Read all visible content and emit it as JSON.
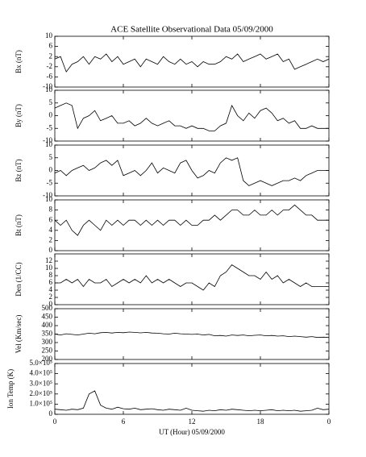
{
  "chart_data": [
    {
      "type": "line",
      "title": "ACE Satellite Observational Data   05/09/2000",
      "y_label": "Bx (nT)",
      "ylim": [
        -10,
        10
      ],
      "yticks": [
        -10,
        -6,
        -2,
        2,
        6,
        10
      ],
      "xlim": [
        0,
        24
      ],
      "color": "#000000",
      "x": [
        0,
        0.5,
        1,
        1.5,
        2,
        2.5,
        3,
        3.5,
        4,
        4.5,
        5,
        5.5,
        6,
        6.5,
        7,
        7.5,
        8,
        8.5,
        9,
        9.5,
        10,
        10.5,
        11,
        11.5,
        12,
        12.5,
        13,
        13.5,
        14,
        14.5,
        15,
        15.5,
        16,
        16.5,
        17,
        17.5,
        18,
        18.5,
        19,
        19.5,
        20,
        20.5,
        21,
        21.5,
        22,
        22.5,
        23,
        23.5,
        24
      ],
      "values": [
        1,
        2,
        -4,
        -1,
        0,
        2,
        -1,
        2,
        1,
        3,
        0,
        2,
        -1,
        0,
        1,
        -2,
        1,
        0,
        -1,
        2,
        0,
        -1,
        1,
        -1,
        0,
        -2,
        0,
        -1,
        -1,
        0,
        2,
        1,
        3,
        0,
        1,
        2,
        3,
        1,
        2,
        3,
        0,
        1,
        -3,
        -2,
        -1,
        0,
        1,
        0,
        1
      ]
    },
    {
      "type": "line",
      "y_label": "By (nT)",
      "ylim": [
        -10,
        10
      ],
      "yticks": [
        -10,
        -5,
        0,
        5,
        10
      ],
      "xlim": [
        0,
        24
      ],
      "color": "#000000",
      "x": [
        0,
        0.5,
        1,
        1.5,
        2,
        2.5,
        3,
        3.5,
        4,
        4.5,
        5,
        5.5,
        6,
        6.5,
        7,
        7.5,
        8,
        8.5,
        9,
        9.5,
        10,
        10.5,
        11,
        11.5,
        12,
        12.5,
        13,
        13.5,
        14,
        14.5,
        15,
        15.5,
        16,
        16.5,
        17,
        17.5,
        18,
        18.5,
        19,
        19.5,
        20,
        20.5,
        21,
        21.5,
        22,
        22.5,
        23,
        23.5,
        24
      ],
      "values": [
        3,
        4,
        5,
        4,
        -5,
        -1,
        0,
        2,
        -2,
        -1,
        0,
        -3,
        -3,
        -2,
        -4,
        -3,
        -1,
        -3,
        -4,
        -3,
        -2,
        -4,
        -4,
        -5,
        -4,
        -5,
        -5,
        -6,
        -6,
        -4,
        -3,
        4,
        0,
        -2,
        1,
        -1,
        2,
        3,
        1,
        -2,
        -1,
        -3,
        -2,
        -5,
        -5,
        -4,
        -5,
        -5,
        -5
      ]
    },
    {
      "type": "line",
      "y_label": "Bz (nT)",
      "ylim": [
        -10,
        10
      ],
      "yticks": [
        -10,
        -5,
        0,
        5,
        10
      ],
      "xlim": [
        0,
        24
      ],
      "color": "#000000",
      "x": [
        0,
        0.5,
        1,
        1.5,
        2,
        2.5,
        3,
        3.5,
        4,
        4.5,
        5,
        5.5,
        6,
        6.5,
        7,
        7.5,
        8,
        8.5,
        9,
        9.5,
        10,
        10.5,
        11,
        11.5,
        12,
        12.5,
        13,
        13.5,
        14,
        14.5,
        15,
        15.5,
        16,
        16.5,
        17,
        17.5,
        18,
        18.5,
        19,
        19.5,
        20,
        20.5,
        21,
        21.5,
        22,
        22.5,
        23,
        23.5,
        24
      ],
      "values": [
        -1,
        0,
        -2,
        0,
        1,
        2,
        0,
        1,
        3,
        4,
        2,
        4,
        -2,
        -1,
        0,
        -2,
        0,
        3,
        -1,
        1,
        0,
        -1,
        3,
        4,
        0,
        -3,
        -2,
        0,
        -1,
        3,
        5,
        4,
        5,
        -4,
        -6,
        -5,
        -4,
        -5,
        -6,
        -5,
        -4,
        -4,
        -3,
        -4,
        -2,
        -1,
        0,
        0,
        0
      ]
    },
    {
      "type": "line",
      "y_label": "Bt (nT)",
      "ylim": [
        0,
        10
      ],
      "yticks": [
        0,
        2,
        4,
        6,
        8,
        10
      ],
      "xlim": [
        0,
        24
      ],
      "color": "#000000",
      "x": [
        0,
        0.5,
        1,
        1.5,
        2,
        2.5,
        3,
        3.5,
        4,
        4.5,
        5,
        5.5,
        6,
        6.5,
        7,
        7.5,
        8,
        8.5,
        9,
        9.5,
        10,
        10.5,
        11,
        11.5,
        12,
        12.5,
        13,
        13.5,
        14,
        14.5,
        15,
        15.5,
        16,
        16.5,
        17,
        17.5,
        18,
        18.5,
        19,
        19.5,
        20,
        20.5,
        21,
        21.5,
        22,
        22.5,
        23,
        23.5,
        24
      ],
      "values": [
        6,
        5,
        6,
        4,
        3,
        5,
        6,
        5,
        4,
        6,
        5,
        6,
        5,
        6,
        6,
        5,
        6,
        5,
        6,
        5,
        6,
        6,
        5,
        6,
        5,
        5,
        6,
        6,
        7,
        6,
        7,
        8,
        8,
        7,
        7,
        8,
        7,
        7,
        8,
        7,
        8,
        8,
        9,
        8,
        7,
        7,
        6,
        6,
        6
      ]
    },
    {
      "type": "line",
      "y_label": "Den (1/CC)",
      "ylim": [
        0,
        14
      ],
      "yticks": [
        0,
        2,
        4,
        6,
        8,
        10,
        12
      ],
      "xlim": [
        0,
        24
      ],
      "color": "#000000",
      "x": [
        0,
        0.5,
        1,
        1.5,
        2,
        2.5,
        3,
        3.5,
        4,
        4.5,
        5,
        5.5,
        6,
        6.5,
        7,
        7.5,
        8,
        8.5,
        9,
        9.5,
        10,
        10.5,
        11,
        11.5,
        12,
        12.5,
        13,
        13.5,
        14,
        14.5,
        15,
        15.5,
        16,
        16.5,
        17,
        17.5,
        18,
        18.5,
        19,
        19.5,
        20,
        20.5,
        21,
        21.5,
        22,
        22.5,
        23,
        23.5,
        24
      ],
      "values": [
        6,
        6,
        7,
        6,
        7,
        5,
        7,
        6,
        6,
        7,
        5,
        6,
        7,
        6,
        7,
        6,
        8,
        6,
        7,
        6,
        7,
        6,
        5,
        6,
        6,
        5,
        4,
        6,
        5,
        8,
        9,
        11,
        10,
        9,
        8,
        8,
        7,
        9,
        7,
        8,
        6,
        7,
        6,
        5,
        6,
        5,
        5,
        5,
        5
      ]
    },
    {
      "type": "line",
      "y_label": "Vel (Km/sec)",
      "ylim": [
        200,
        500
      ],
      "yticks": [
        200,
        250,
        300,
        350,
        400,
        450,
        500
      ],
      "xlim": [
        0,
        24
      ],
      "color": "#000000",
      "x": [
        0,
        0.5,
        1,
        1.5,
        2,
        2.5,
        3,
        3.5,
        4,
        4.5,
        5,
        5.5,
        6,
        6.5,
        7,
        7.5,
        8,
        8.5,
        9,
        9.5,
        10,
        10.5,
        11,
        11.5,
        12,
        12.5,
        13,
        13.5,
        14,
        14.5,
        15,
        15.5,
        16,
        16.5,
        17,
        17.5,
        18,
        18.5,
        19,
        19.5,
        20,
        20.5,
        21,
        21.5,
        22,
        22.5,
        23,
        23.5,
        24
      ],
      "values": [
        350,
        345,
        352,
        348,
        345,
        350,
        355,
        352,
        358,
        360,
        356,
        360,
        358,
        362,
        360,
        357,
        360,
        356,
        355,
        352,
        350,
        355,
        352,
        350,
        348,
        350,
        345,
        348,
        340,
        342,
        338,
        345,
        342,
        345,
        340,
        343,
        345,
        340,
        342,
        338,
        340,
        335,
        338,
        335,
        332,
        335,
        330,
        332,
        330
      ]
    },
    {
      "type": "line",
      "y_label": "Ion Temp (K)",
      "x_label": "UT (Hour)   05/09/2000",
      "ylim": [
        0,
        500000
      ],
      "yticks": [
        0,
        {
          "value": 100000,
          "label": "1.0×10⁵"
        },
        {
          "value": 200000,
          "label": "2.0×10⁵"
        },
        {
          "value": 300000,
          "label": "3.0×10⁵"
        },
        {
          "value": 400000,
          "label": "4.0×10⁵"
        },
        {
          "value": 500000,
          "label": "5.0×10⁵"
        }
      ],
      "xlim": [
        0,
        24
      ],
      "xticks": [
        0,
        6,
        12,
        18,
        {
          "value": 24,
          "label": "0"
        }
      ],
      "color": "#000000",
      "x": [
        0,
        0.5,
        1,
        1.5,
        2,
        2.5,
        3,
        3.5,
        4,
        4.5,
        5,
        5.5,
        6,
        6.5,
        7,
        7.5,
        8,
        8.5,
        9,
        9.5,
        10,
        10.5,
        11,
        11.5,
        12,
        12.5,
        13,
        13.5,
        14,
        14.5,
        15,
        15.5,
        16,
        16.5,
        17,
        17.5,
        18,
        18.5,
        19,
        19.5,
        20,
        20.5,
        21,
        21.5,
        22,
        22.5,
        23,
        23.5,
        24
      ],
      "values": [
        50000,
        45000,
        40000,
        50000,
        45000,
        60000,
        200000,
        230000,
        90000,
        60000,
        50000,
        70000,
        55000,
        50000,
        60000,
        45000,
        50000,
        55000,
        45000,
        40000,
        50000,
        45000,
        40000,
        60000,
        40000,
        35000,
        30000,
        40000,
        35000,
        45000,
        40000,
        50000,
        45000,
        40000,
        35000,
        40000,
        35000,
        40000,
        45000,
        35000,
        40000,
        35000,
        40000,
        30000,
        35000,
        40000,
        60000,
        45000,
        50000
      ]
    }
  ]
}
